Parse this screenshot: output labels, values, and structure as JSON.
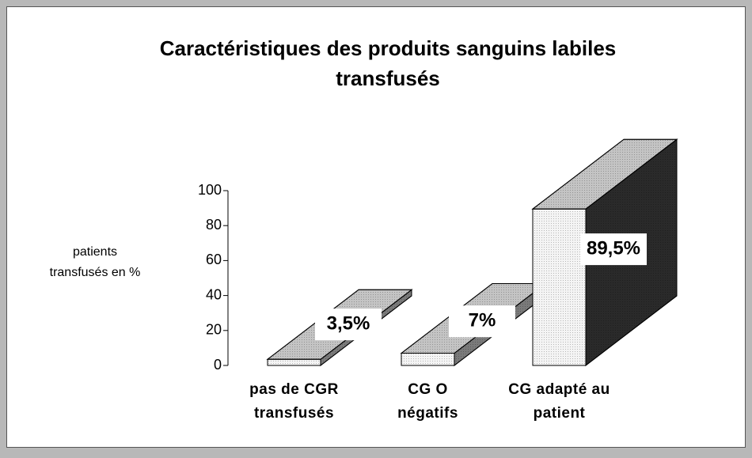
{
  "chart_data": {
    "type": "bar3d",
    "title": "Caractéristiques des produits sanguins labiles transfusés",
    "y_label": "patients transfusés en %",
    "categories": [
      "pas de CGR transfusés",
      "CG O négatifs",
      "CG adapté au patient"
    ],
    "values": [
      3.5,
      7,
      89.5
    ],
    "value_labels": [
      "3,5%",
      "7%",
      "89,5%"
    ],
    "ylim": [
      0,
      100
    ],
    "yticks": [
      0,
      20,
      40,
      60,
      80,
      100
    ],
    "colors": {
      "front": "#f4f4f4",
      "top": "#c4c4c4",
      "side": [
        "#7a7a7a",
        "#7a7a7a",
        "#2a2a2a"
      ]
    }
  }
}
